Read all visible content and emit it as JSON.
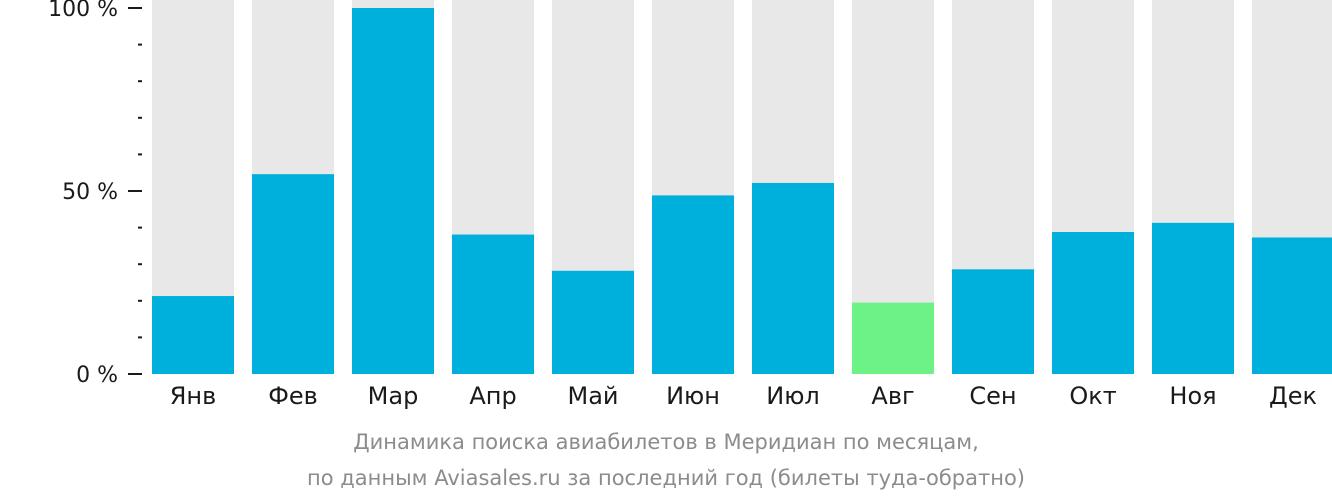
{
  "chart_data": {
    "type": "bar",
    "categories": [
      "Янв",
      "Фев",
      "Мар",
      "Апр",
      "Май",
      "Июн",
      "Июл",
      "Авг",
      "Сен",
      "Окт",
      "Ноя",
      "Дек"
    ],
    "values": [
      21.3,
      54.6,
      100,
      38.1,
      28.2,
      48.8,
      52.2,
      19.5,
      28.6,
      38.8,
      41.3,
      37.3
    ],
    "ylim": [
      0,
      100
    ],
    "yticks": [
      {
        "value": 0,
        "label": "0 %"
      },
      {
        "value": 50,
        "label": "50 %"
      },
      {
        "value": 100,
        "label": "100 %"
      }
    ],
    "minor_ticks": [
      10,
      20,
      30,
      40,
      60,
      70,
      80,
      90
    ],
    "highlight_index": 7,
    "colors": {
      "bar": "#00b0dc",
      "highlight": "#6cf285",
      "track": "#e8e8e8",
      "axis": "#1a1a1a"
    }
  },
  "caption": {
    "line1": "Динамика поиска авиабилетов в Меридиан по месяцам,",
    "line2": "по данным Aviasales.ru за последний год (билеты туда-обратно)"
  }
}
